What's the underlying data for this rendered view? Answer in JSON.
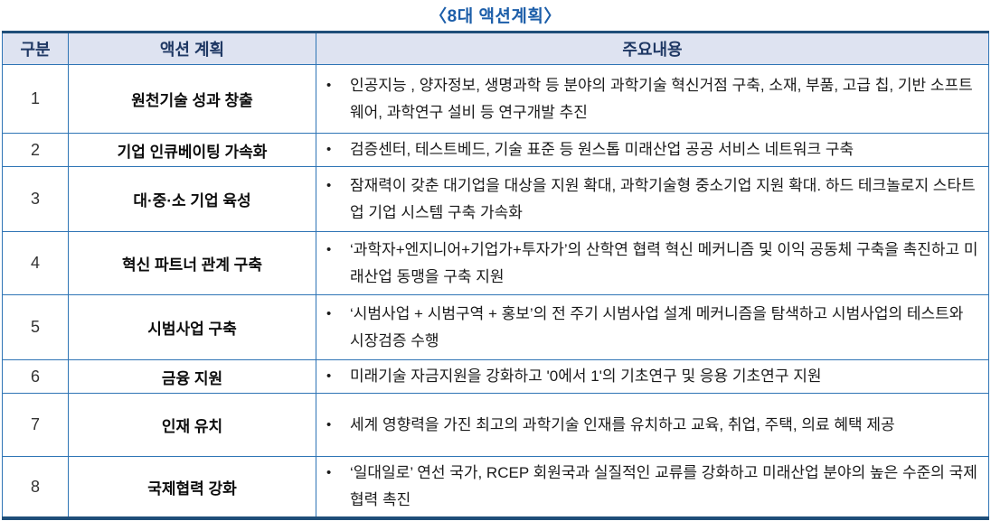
{
  "title": "〈8대 액션계획〉",
  "table": {
    "bullet": "•",
    "headers": [
      "구분",
      "액션 계획",
      "주요내용"
    ],
    "rows": [
      {
        "no": "1",
        "plan": "원천기술 성과 창출",
        "content": "인공지능 , 양자정보, 생명과학 등 분야의 과학기술 혁신거점 구축, 소재, 부품, 고급 칩, 기반 소프트웨어, 과학연구 설비 등 연구개발 추진"
      },
      {
        "no": "2",
        "plan": "기업 인큐베이팅 가속화",
        "content": "검증센터, 테스트베드, 기술 표준 등 원스톱 미래산업 공공 서비스 네트워크 구축"
      },
      {
        "no": "3",
        "plan": "대·중·소 기업 육성",
        "content": "잠재력이 갖춘 대기업을 대상을 지원 확대, 과학기술형 중소기업 지원 확대. 하드 테크놀로지 스타트업 기업 시스템 구축 가속화"
      },
      {
        "no": "4",
        "plan": "혁신 파트너 관계 구축",
        "content": "‘과학자+엔지니어+기업가+투자가’의 산학연 협력 혁신 메커니즘 및 이익 공동체 구축을 촉진하고 미래산업 동맹을 구축 지원"
      },
      {
        "no": "5",
        "plan": "시범사업 구축",
        "content": "‘시범사업 + 시범구역 + 홍보’의 전 주기 시범사업 설계 메커니즘을 탐색하고 시범사업의 테스트와 시장검증 수행"
      },
      {
        "no": "6",
        "plan": "금융 지원",
        "content": "미래기술 자금지원을 강화하고 '0에서 1'의 기초연구 및 응용 기초연구 지원"
      },
      {
        "no": "7",
        "plan": "인재 유치",
        "content": "세계 영향력을 가진 최고의 과학기술 인재를 유치하고 교육, 취업, 주택, 의료 혜택 제공"
      },
      {
        "no": "8",
        "plan": "국제협력 강화",
        "content": "‘일대일로’ 연선 국가, RCEP 회원국과 실질적인 교류를 강화하고 미래산업 분야의 높은 수준의 국제 협력 촉진"
      }
    ]
  },
  "colors": {
    "title_text": "#1C5EA9",
    "header_bg": "#DEE3F1",
    "header_text": "#1F3864",
    "outer_border": "#1F4E79",
    "inner_border": "#2E74B5",
    "body_text": "#1A1A1A"
  }
}
